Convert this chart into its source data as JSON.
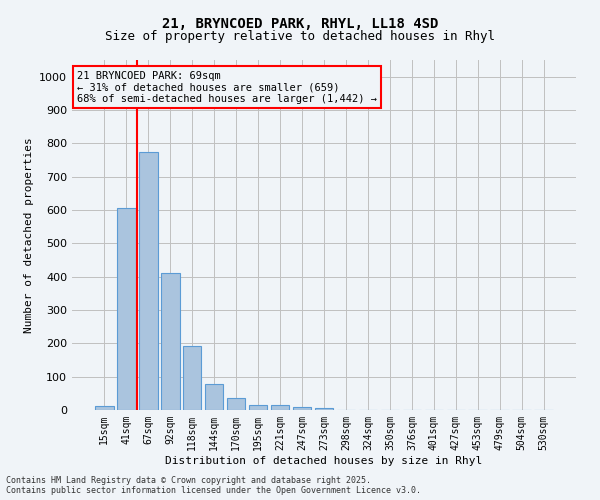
{
  "title_line1": "21, BRYNCOED PARK, RHYL, LL18 4SD",
  "title_line2": "Size of property relative to detached houses in Rhyl",
  "xlabel": "Distribution of detached houses by size in Rhyl",
  "ylabel": "Number of detached properties",
  "categories": [
    "15sqm",
    "41sqm",
    "67sqm",
    "92sqm",
    "118sqm",
    "144sqm",
    "170sqm",
    "195sqm",
    "221sqm",
    "247sqm",
    "273sqm",
    "298sqm",
    "324sqm",
    "350sqm",
    "376sqm",
    "401sqm",
    "427sqm",
    "453sqm",
    "479sqm",
    "504sqm",
    "530sqm"
  ],
  "values": [
    12,
    605,
    775,
    410,
    193,
    78,
    36,
    15,
    14,
    10,
    7,
    0,
    0,
    0,
    0,
    0,
    0,
    0,
    0,
    0,
    0
  ],
  "bar_color": "#aac4de",
  "bar_edge_color": "#5b9bd5",
  "grid_color": "#c0c0c0",
  "annotation_box_text": "21 BRYNCOED PARK: 69sqm\n← 31% of detached houses are smaller (659)\n68% of semi-detached houses are larger (1,442) →",
  "annotation_box_color": "#ff0000",
  "vline_x": 1,
  "vline_color": "#ff0000",
  "ylim": [
    0,
    1050
  ],
  "yticks": [
    0,
    100,
    200,
    300,
    400,
    500,
    600,
    700,
    800,
    900,
    1000
  ],
  "footnote": "Contains HM Land Registry data © Crown copyright and database right 2025.\nContains public sector information licensed under the Open Government Licence v3.0.",
  "bg_color": "#f0f4f8",
  "plot_bg_color": "#f0f4f8"
}
